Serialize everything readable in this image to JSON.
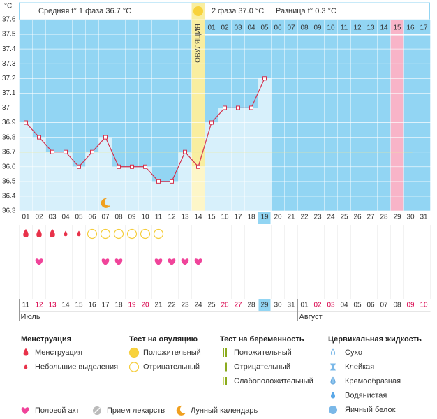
{
  "chart_data": {
    "type": "line",
    "y_unit": "°C",
    "header": {
      "phase1": "Средняя t° 1 фаза 36.7 °C",
      "phase2": "2 фаза 37.0 °C",
      "diff": "Разница t° 0.3 °C"
    },
    "ovulation_label": "ОВУЛЯЦИЯ",
    "categories": [
      "01",
      "02",
      "03",
      "04",
      "05",
      "06",
      "07",
      "08",
      "09",
      "10",
      "11",
      "12",
      "13",
      "14",
      "15",
      "16",
      "17",
      "18",
      "19",
      "20",
      "21",
      "22",
      "23",
      "24",
      "25",
      "26",
      "27",
      "28",
      "29",
      "30",
      "31"
    ],
    "phase2_days": [
      "01",
      "02",
      "03",
      "04",
      "05",
      "06",
      "07",
      "08",
      "09",
      "10",
      "11",
      "12",
      "13",
      "14",
      "15",
      "16",
      "17"
    ],
    "values": [
      36.9,
      36.8,
      36.7,
      36.7,
      36.6,
      36.7,
      36.8,
      36.6,
      36.6,
      36.6,
      36.5,
      36.5,
      36.7,
      36.6,
      36.9,
      37.0,
      37.0,
      37.0,
      37.2,
      null,
      null,
      null,
      null,
      null,
      null,
      null,
      null,
      null,
      null,
      null,
      null
    ],
    "color": "#d4304c",
    "coverline": 36.7,
    "ylim": [
      36.3,
      37.6
    ],
    "yticks": [
      36.3,
      36.4,
      36.5,
      36.6,
      36.7,
      36.8,
      36.9,
      37,
      37.1,
      37.2,
      37.3,
      37.4,
      37.5,
      37.6
    ],
    "grid": true,
    "ovulation_day": 14,
    "highlight_day": 29,
    "today": 19,
    "dates": [
      "11",
      "12",
      "13",
      "14",
      "15",
      "16",
      "17",
      "18",
      "19",
      "20",
      "21",
      "22",
      "23",
      "24",
      "25",
      "26",
      "27",
      "28",
      "29",
      "30",
      "31",
      "01",
      "02",
      "03",
      "04",
      "05",
      "06",
      "07",
      "08",
      "09",
      "10"
    ],
    "weekend": [
      false,
      true,
      true,
      false,
      false,
      false,
      false,
      false,
      true,
      true,
      false,
      false,
      false,
      false,
      false,
      true,
      true,
      false,
      false,
      false,
      false,
      false,
      true,
      true,
      false,
      false,
      false,
      false,
      false,
      true,
      true
    ],
    "weekend_color": "#d8004a",
    "months": [
      {
        "label": "Июль",
        "start": 1
      },
      {
        "label": "Август",
        "start": 22
      }
    ],
    "markers": {
      "menstruation": [
        1,
        2,
        3
      ],
      "spotting": [
        4,
        5
      ],
      "ovulation_negative": [
        6,
        7,
        8,
        9,
        10,
        11
      ],
      "intercourse": [
        2,
        7,
        8,
        11,
        12,
        13,
        14
      ],
      "moon": [
        7
      ]
    }
  },
  "legend": {
    "groups": [
      {
        "title": "Менструация",
        "items": [
          "Менструация",
          "Небольшие выделения"
        ]
      },
      {
        "title": "Тест на овуляцию",
        "items": [
          "Положительный",
          "Отрицательный"
        ]
      },
      {
        "title": "Тест на беременность",
        "items": [
          "Положительный",
          "Отрицательный",
          "Слабоположительный"
        ]
      },
      {
        "title": "Цервикальная жидкость",
        "items": [
          "Сухо",
          "Клейкая",
          "Кремообразная",
          "Водянистая",
          "Яичный белок"
        ]
      }
    ],
    "other": [
      "Половой акт",
      "Прием лекарств",
      "Лунный календарь"
    ]
  }
}
